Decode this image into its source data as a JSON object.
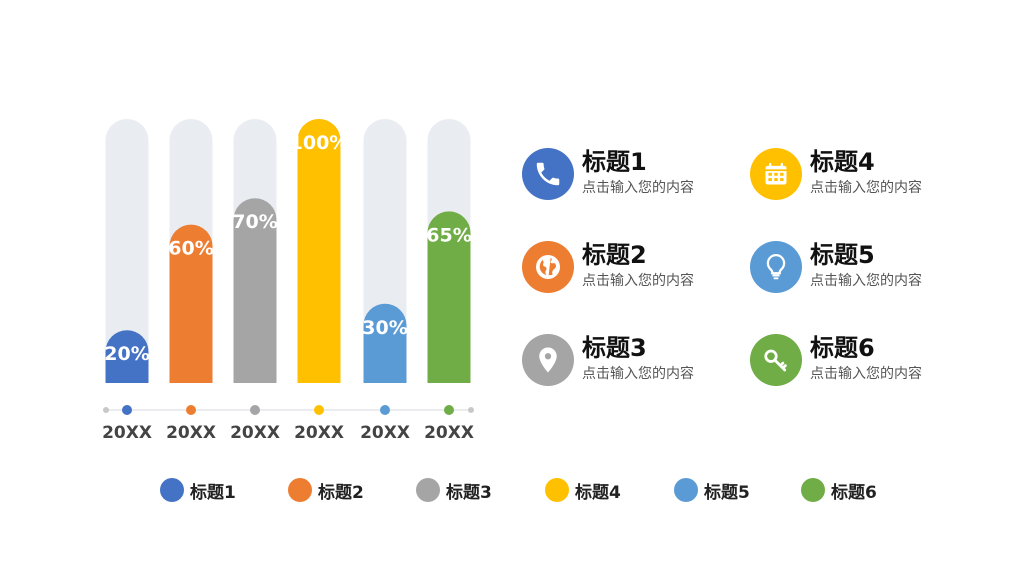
{
  "chart_data": {
    "type": "bar",
    "categories": [
      "20XX",
      "20XX",
      "20XX",
      "20XX",
      "20XX",
      "20XX"
    ],
    "values": [
      20,
      60,
      70,
      100,
      30,
      65
    ],
    "value_labels": [
      "20%",
      "60%",
      "70%",
      "100%",
      "30%",
      "65%"
    ],
    "ylim": [
      0,
      100
    ],
    "colors": [
      "#4472C4",
      "#ED7D31",
      "#A5A5A5",
      "#FFC000",
      "#5B9BD5",
      "#70AD47"
    ],
    "track_color": "#E9ECF1",
    "grid": false
  },
  "info": [
    {
      "title": "标题1",
      "subtitle": "点击输入您的内容",
      "icon": "phone-icon",
      "color": "#4472C4"
    },
    {
      "title": "标题2",
      "subtitle": "点击输入您的内容",
      "icon": "globe-icon",
      "color": "#ED7D31"
    },
    {
      "title": "标题3",
      "subtitle": "点击输入您的内容",
      "icon": "location-pin-icon",
      "color": "#A5A5A5"
    },
    {
      "title": "标题4",
      "subtitle": "点击输入您的内容",
      "icon": "calendar-icon",
      "color": "#FFC000"
    },
    {
      "title": "标题5",
      "subtitle": "点击输入您的内容",
      "icon": "lightbulb-icon",
      "color": "#5B9BD5"
    },
    {
      "title": "标题6",
      "subtitle": "点击输入您的内容",
      "icon": "key-icon",
      "color": "#70AD47"
    }
  ],
  "legend": [
    {
      "label": "标题1",
      "color": "#4472C4"
    },
    {
      "label": "标题2",
      "color": "#ED7D31"
    },
    {
      "label": "标题3",
      "color": "#A5A5A5"
    },
    {
      "label": "标题4",
      "color": "#FFC000"
    },
    {
      "label": "标题5",
      "color": "#5B9BD5"
    },
    {
      "label": "标题6",
      "color": "#70AD47"
    }
  ]
}
